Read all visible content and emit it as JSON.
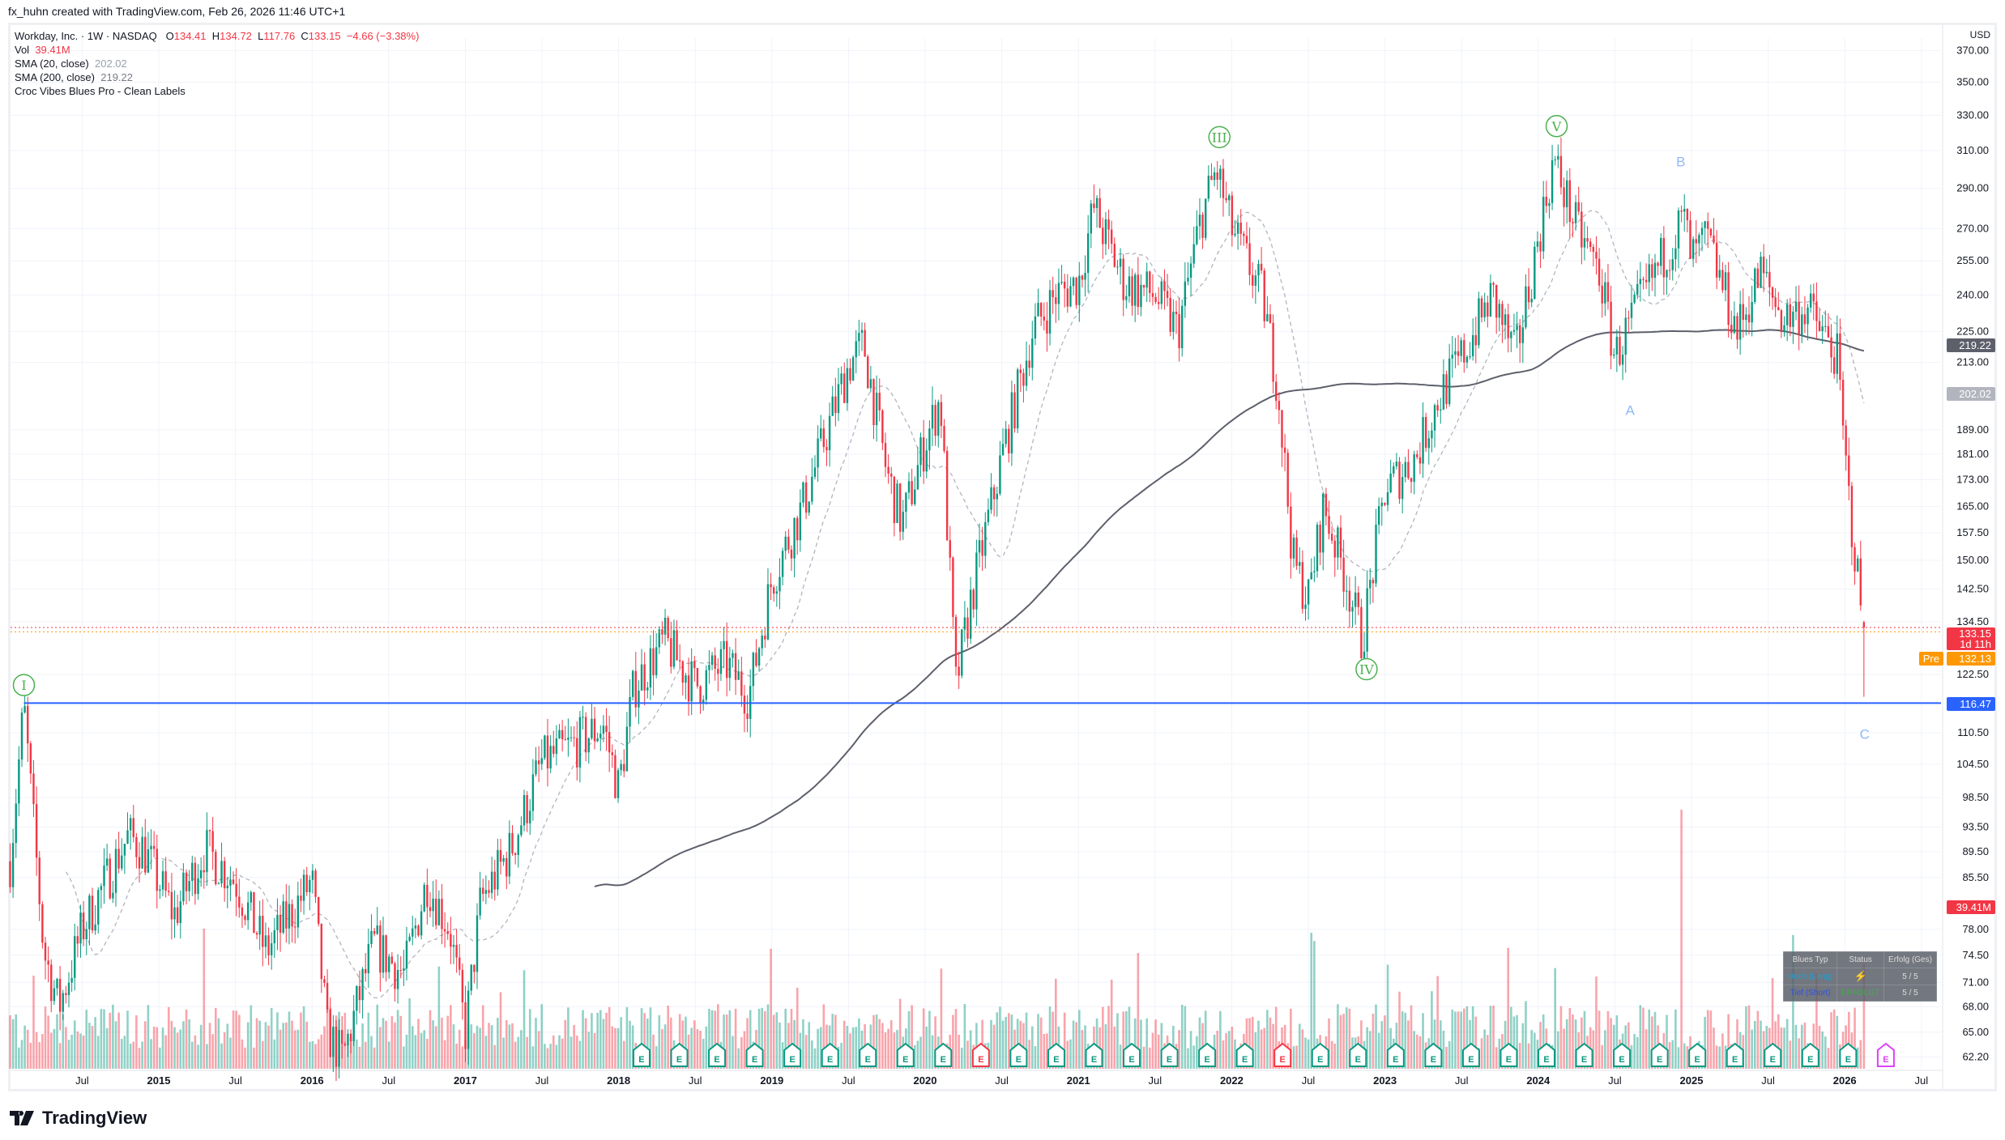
{
  "credit": "fx_huhn created with TradingView.com, Feb 26, 2026 11:46 UTC+1",
  "legend": {
    "symbol": "Workday, Inc. · 1W · NASDAQ",
    "o_label": "O",
    "o": "134.41",
    "h_label": "H",
    "h": "134.72",
    "l_label": "L",
    "l": "117.76",
    "c_label": "C",
    "c": "133.15",
    "change": "−4.66 (−3.38%)",
    "vol_label": "Vol",
    "vol": "39.41M",
    "sma20_label": "SMA (20, close)",
    "sma20": "202.02",
    "sma200_label": "SMA (200, close)",
    "sma200": "219.22",
    "indicator": "Croc Vibes Blues Pro - Clean Labels"
  },
  "currency": "USD",
  "price_tags": {
    "sma200": "219.22",
    "sma20": "202.02",
    "last": "133.15",
    "countdown": "1d 11h",
    "pre_label": "Pre",
    "pre": "132.13",
    "level": "116.47",
    "volume": "39.41M"
  },
  "colors": {
    "up": "#089981",
    "down": "#f23645",
    "level": "#2962ff",
    "pre": "#ff9800",
    "wave": "#4caf50",
    "abc": "#90b8f8"
  },
  "wave_labels": [
    "I",
    "III",
    "IV",
    "V",
    "A",
    "B",
    "C"
  ],
  "blues_table": {
    "headers": [
      "Blues Typ",
      "Status",
      "Erfolg (Ges)"
    ],
    "rows": [
      [
        "Hoch (Long)",
        "",
        "5 / 5"
      ],
      [
        "Tief (Short)",
        "ERFOLGT",
        "5 / 5"
      ]
    ]
  },
  "brand": "TradingView",
  "chart_data": {
    "type": "candlestick",
    "title": "Workday, Inc. · 1W · NASDAQ",
    "y_scale": "log",
    "ylim": [
      62.2,
      370
    ],
    "y_ticks": [
      "370.00",
      "350.00",
      "330.00",
      "310.00",
      "290.00",
      "270.00",
      "255.00",
      "240.00",
      "225.00",
      "213.00",
      "189.00",
      "181.00",
      "173.00",
      "165.00",
      "157.50",
      "150.00",
      "142.50",
      "134.50",
      "122.50",
      "110.50",
      "104.50",
      "98.50",
      "93.50",
      "89.50",
      "85.50",
      "78.00",
      "74.50",
      "71.00",
      "68.00",
      "65.00",
      "62.20"
    ],
    "x_ticks": [
      [
        "Jul",
        2014.5
      ],
      [
        "2015",
        2015
      ],
      [
        "Jul",
        2015.5
      ],
      [
        "2016",
        2016
      ],
      [
        "Jul",
        2016.5
      ],
      [
        "2017",
        2017
      ],
      [
        "Jul",
        2017.5
      ],
      [
        "2018",
        2018
      ],
      [
        "Jul",
        2018.5
      ],
      [
        "2019",
        2019
      ],
      [
        "Jul",
        2019.5
      ],
      [
        "2020",
        2020
      ],
      [
        "Jul",
        2020.5
      ],
      [
        "2021",
        2021
      ],
      [
        "Jul",
        2021.5
      ],
      [
        "2022",
        2022
      ],
      [
        "Jul",
        2022.5
      ],
      [
        "2023",
        2023
      ],
      [
        "Jul",
        2023.5
      ],
      [
        "2024",
        2024
      ],
      [
        "Jul",
        2024.5
      ],
      [
        "2025",
        2025
      ],
      [
        "Jul",
        2025.5
      ],
      [
        "2026",
        2026
      ],
      [
        "Jul",
        2026.5
      ]
    ],
    "close_path": [
      [
        2014.03,
        88
      ],
      [
        2014.12,
        116
      ],
      [
        2014.25,
        75
      ],
      [
        2014.35,
        68
      ],
      [
        2014.5,
        78
      ],
      [
        2014.8,
        92
      ],
      [
        2014.9,
        90
      ],
      [
        2015.1,
        80
      ],
      [
        2015.3,
        90
      ],
      [
        2015.5,
        85
      ],
      [
        2015.7,
        75
      ],
      [
        2016.0,
        85
      ],
      [
        2016.1,
        65
      ],
      [
        2016.2,
        62
      ],
      [
        2016.4,
        76
      ],
      [
        2016.6,
        72
      ],
      [
        2016.75,
        85
      ],
      [
        2016.9,
        78
      ],
      [
        2017.0,
        65
      ],
      [
        2017.1,
        82
      ],
      [
        2017.3,
        90
      ],
      [
        2017.5,
        105
      ],
      [
        2017.7,
        108
      ],
      [
        2017.9,
        112
      ],
      [
        2018.0,
        100
      ],
      [
        2018.1,
        120
      ],
      [
        2018.3,
        130
      ],
      [
        2018.5,
        120
      ],
      [
        2018.7,
        125
      ],
      [
        2018.85,
        118
      ],
      [
        2019.0,
        145
      ],
      [
        2019.2,
        165
      ],
      [
        2019.4,
        195
      ],
      [
        2019.5,
        212
      ],
      [
        2019.6,
        220
      ],
      [
        2019.75,
        175
      ],
      [
        2019.85,
        160
      ],
      [
        2020.0,
        185
      ],
      [
        2020.1,
        200
      ],
      [
        2020.2,
        120
      ],
      [
        2020.3,
        140
      ],
      [
        2020.5,
        180
      ],
      [
        2020.7,
        225
      ],
      [
        2020.85,
        240
      ],
      [
        2021.0,
        245
      ],
      [
        2021.1,
        280
      ],
      [
        2021.3,
        245
      ],
      [
        2021.5,
        240
      ],
      [
        2021.65,
        225
      ],
      [
        2021.8,
        275
      ],
      [
        2021.9,
        300
      ],
      [
        2022.0,
        270
      ],
      [
        2022.2,
        240
      ],
      [
        2022.3,
        205
      ],
      [
        2022.4,
        150
      ],
      [
        2022.5,
        140
      ],
      [
        2022.6,
        165
      ],
      [
        2022.75,
        145
      ],
      [
        2022.85,
        130
      ],
      [
        2023.0,
        170
      ],
      [
        2023.2,
        180
      ],
      [
        2023.35,
        200
      ],
      [
        2023.5,
        215
      ],
      [
        2023.7,
        240
      ],
      [
        2023.85,
        215
      ],
      [
        2024.0,
        265
      ],
      [
        2024.1,
        305
      ],
      [
        2024.25,
        270
      ],
      [
        2024.4,
        250
      ],
      [
        2024.5,
        215
      ],
      [
        2024.65,
        235
      ],
      [
        2024.8,
        255
      ],
      [
        2024.95,
        275
      ],
      [
        2025.0,
        255
      ],
      [
        2025.1,
        265
      ],
      [
        2025.3,
        225
      ],
      [
        2025.45,
        250
      ],
      [
        2025.6,
        230
      ],
      [
        2025.75,
        235
      ],
      [
        2025.85,
        225
      ],
      [
        2025.95,
        215
      ],
      [
        2026.0,
        180
      ],
      [
        2026.07,
        150
      ],
      [
        2026.1,
        140
      ]
    ],
    "last_candle": {
      "open": 134.41,
      "high": 134.72,
      "low": 117.76,
      "close": 133.15
    },
    "horizontal_level": 116.47,
    "pre_market": 132.13,
    "sma_periods": [
      20,
      200
    ],
    "wave_points": [
      [
        "I",
        2014.12,
        116
      ],
      [
        "III",
        2021.92,
        305
      ],
      [
        "IV",
        2022.88,
        128
      ],
      [
        "V",
        2024.12,
        311
      ],
      [
        "A",
        2024.6,
        205
      ],
      [
        "B",
        2024.93,
        293
      ],
      [
        "C",
        2026.13,
        117.8
      ]
    ],
    "earnings_start": 2018.15,
    "earnings_count": 34
  }
}
